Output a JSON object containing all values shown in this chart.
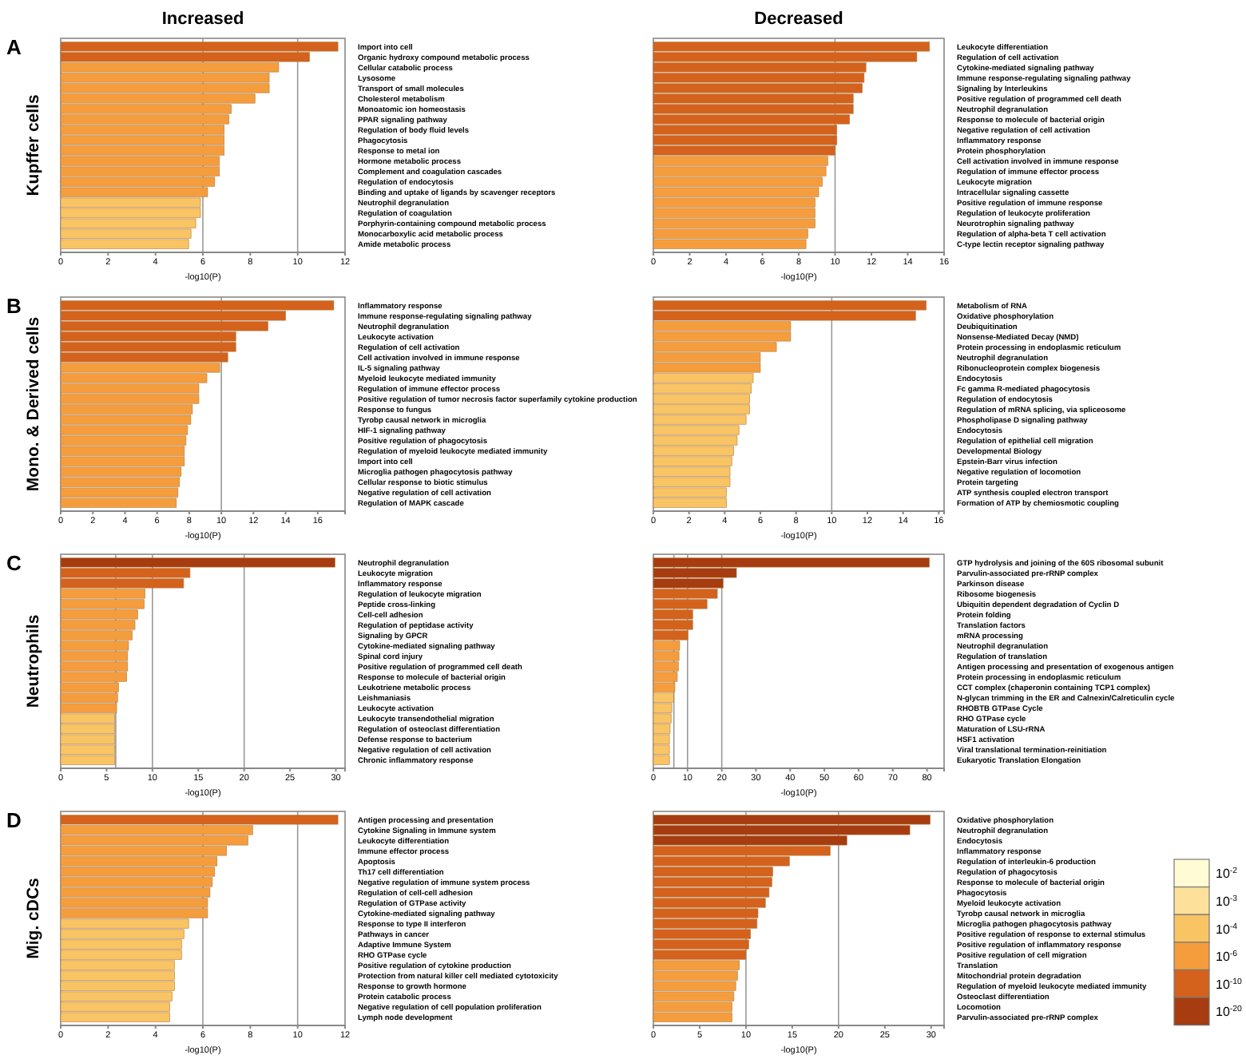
{
  "chart_data": [
    {
      "type": "bar",
      "orientation": "horizontal",
      "title": "Increased",
      "ylabel": "Kupffer cells",
      "annotations": [
        "A"
      ],
      "xlabel": "-log10(P)",
      "xlim": [
        0,
        12
      ],
      "xticks": [
        0,
        2,
        4,
        6,
        8,
        10,
        12
      ],
      "ref_lines": [
        {
          "axis": "x",
          "value": 6
        },
        {
          "axis": "x",
          "value": 10
        }
      ],
      "categories": [
        "Import into cell",
        "Organic hydroxy compound metabolic process",
        "Cellular catabolic process",
        "Lysosome",
        "Transport of small molecules",
        "Cholesterol metabolism",
        "Monoatomic ion homeostasis",
        "PPAR signaling pathway",
        "Regulation of body fluid levels",
        "Phagocytosis",
        "Response to metal ion",
        "Hormone metabolic process",
        "Complement and coagulation cascades",
        "Regulation of endocytosis",
        "Binding and uptake of ligands by scavenger receptors",
        "Neutrophil degranulation",
        "Regulation of coagulation",
        "Porphyrin-containing compound metabolic process",
        "Monocarboxylic acid metabolic process",
        "Amide metabolic process"
      ],
      "values": [
        11.7,
        10.5,
        9.2,
        8.8,
        8.8,
        8.2,
        7.2,
        7.1,
        6.9,
        6.9,
        6.9,
        6.7,
        6.7,
        6.5,
        6.2,
        5.9,
        5.9,
        5.7,
        5.5,
        5.4
      ],
      "colors": [
        "#d4621c",
        "#d4621c",
        "#f59d3d",
        "#f59d3d",
        "#f59d3d",
        "#f59d3d",
        "#f59d3d",
        "#f59d3d",
        "#f59d3d",
        "#f59d3d",
        "#f59d3d",
        "#f59d3d",
        "#f59d3d",
        "#f59d3d",
        "#f59d3d",
        "#f9c463",
        "#f9c463",
        "#f9c463",
        "#f9c463",
        "#f9c463"
      ]
    },
    {
      "type": "bar",
      "orientation": "horizontal",
      "title": "Decreased",
      "xlabel": "-log10(P)",
      "xlim": [
        0,
        16
      ],
      "xticks": [
        0,
        2,
        4,
        6,
        8,
        10,
        12,
        14,
        16
      ],
      "ref_lines": [
        {
          "axis": "x",
          "value": 10
        }
      ],
      "categories": [
        "Leukocyte differentiation",
        "Regulation of cell activation",
        "Cytokine-mediated signaling pathway",
        "Immune response-regulating signaling pathway",
        "Signaling by Interleukins",
        "Positive regulation of programmed cell death",
        "Neutrophil degranulation",
        "Response to molecule of bacterial origin",
        "Negative regulation of cell activation",
        "Inflammatory response",
        "Protein phosphorylation",
        "Cell activation involved in immune response",
        "Regulation of immune effector process",
        "Leukocyte migration",
        "Intracellular signaling cassette",
        "Positive regulation of immune response",
        "Regulation of leukocyte proliferation",
        "Neurotrophin signaling pathway",
        "Regulation of alpha-beta T cell activation",
        "C-type lectin receptor signaling pathway"
      ],
      "values": [
        15.2,
        14.5,
        11.7,
        11.6,
        11.5,
        11.0,
        11.0,
        10.8,
        10.1,
        10.1,
        10.0,
        9.6,
        9.5,
        9.3,
        9.1,
        8.9,
        8.9,
        8.9,
        8.5,
        8.4
      ],
      "colors": [
        "#d4621c",
        "#d4621c",
        "#d4621c",
        "#d4621c",
        "#d4621c",
        "#d4621c",
        "#d4621c",
        "#d4621c",
        "#d4621c",
        "#d4621c",
        "#d4621c",
        "#f59d3d",
        "#f59d3d",
        "#f59d3d",
        "#f59d3d",
        "#f59d3d",
        "#f59d3d",
        "#f59d3d",
        "#f59d3d",
        "#f59d3d"
      ]
    },
    {
      "type": "bar",
      "orientation": "horizontal",
      "ylabel": "Mono. & Derived cells",
      "annotations": [
        "B"
      ],
      "xlabel": "-log10(P)",
      "xlim": [
        0,
        17.7
      ],
      "xticks": [
        0,
        2,
        4,
        6,
        8,
        10,
        12,
        14,
        16
      ],
      "ref_lines": [
        {
          "axis": "x",
          "value": 10
        }
      ],
      "categories": [
        "Inflammatory response",
        "Immune response-regulating signaling pathway",
        "Neutrophil degranulation",
        "Leukocyte activation",
        "Regulation of cell activation",
        "Cell activation involved in immune response",
        "IL-5 signaling pathway",
        "Myeloid leukocyte mediated immunity",
        "Regulation of immune effector process",
        "Positive regulation of tumor necrosis factor superfamily cytokine production",
        "Response to fungus",
        "Tyrobp causal network in microglia",
        "HIF-1 signaling pathway",
        "Positive regulation of phagocytosis",
        "Regulation of myeloid leukocyte mediated immunity",
        "Import into cell",
        "Microglia pathogen phagocytosis pathway",
        "Cellular response to biotic stimulus",
        "Negative regulation of cell activation",
        "Regulation of MAPK cascade"
      ],
      "values": [
        17.0,
        14.0,
        12.9,
        10.9,
        10.9,
        10.4,
        9.9,
        9.1,
        8.6,
        8.6,
        8.2,
        8.1,
        7.9,
        7.8,
        7.7,
        7.7,
        7.5,
        7.4,
        7.3,
        7.2
      ],
      "colors": [
        "#d4621c",
        "#d4621c",
        "#d4621c",
        "#d4621c",
        "#d4621c",
        "#d4621c",
        "#f59d3d",
        "#f59d3d",
        "#f59d3d",
        "#f59d3d",
        "#f59d3d",
        "#f59d3d",
        "#f59d3d",
        "#f59d3d",
        "#f59d3d",
        "#f59d3d",
        "#f59d3d",
        "#f59d3d",
        "#f59d3d",
        "#f59d3d"
      ]
    },
    {
      "type": "bar",
      "orientation": "horizontal",
      "xlabel": "-log10(P)",
      "xlim": [
        0,
        16.3
      ],
      "xticks": [
        0,
        2,
        4,
        6,
        8,
        10,
        12,
        14,
        16
      ],
      "ref_lines": [
        {
          "axis": "x",
          "value": 10
        }
      ],
      "categories": [
        "Metabolism of RNA",
        "Oxidative phosphorylation",
        "Deubiquitination",
        "Nonsense-Mediated Decay (NMD)",
        "Protein processing in endoplasmic reticulum",
        "Neutrophil degranulation",
        "Ribonucleoprotein complex biogenesis",
        "Endocytosis",
        "Fc gamma R-mediated phagocytosis",
        "Regulation of endocytosis",
        "Regulation of mRNA splicing, via spliceosome",
        "Phospholipase D signaling pathway",
        "Endocytosis",
        "Regulation of epithelial cell migration",
        "Developmental Biology",
        "Epstein-Barr virus infection",
        "Negative regulation of locomotion",
        "Protein targeting",
        "ATP synthesis coupled electron transport",
        "Formation of ATP by chemiosmotic coupling"
      ],
      "values": [
        15.3,
        14.7,
        7.7,
        7.7,
        6.9,
        6.0,
        6.0,
        5.6,
        5.5,
        5.4,
        5.4,
        5.2,
        4.8,
        4.7,
        4.5,
        4.4,
        4.3,
        4.3,
        4.1,
        4.1
      ],
      "colors": [
        "#d4621c",
        "#d4621c",
        "#f59d3d",
        "#f59d3d",
        "#f59d3d",
        "#f59d3d",
        "#f59d3d",
        "#f9c463",
        "#f9c463",
        "#f9c463",
        "#f9c463",
        "#f9c463",
        "#f9c463",
        "#f9c463",
        "#f9c463",
        "#f9c463",
        "#f9c463",
        "#f9c463",
        "#f9c463",
        "#f9c463"
      ]
    },
    {
      "type": "bar",
      "orientation": "horizontal",
      "ylabel": "Neutrophils",
      "annotations": [
        "C"
      ],
      "xlabel": "-log10(P)",
      "xlim": [
        0,
        31
      ],
      "xticks": [
        0,
        5,
        10,
        15,
        20,
        25,
        30
      ],
      "ref_lines": [
        {
          "axis": "x",
          "value": 6
        },
        {
          "axis": "x",
          "value": 10
        },
        {
          "axis": "x",
          "value": 20
        }
      ],
      "categories": [
        "Neutrophil degranulation",
        "Leukocyte migration",
        "Inflammatory response",
        "Regulation of leukocyte migration",
        "Peptide cross-linking",
        "Cell-cell adhesion",
        "Regulation of peptidase activity",
        "Signaling by GPCR",
        "Cytokine-mediated signaling pathway",
        "Spinal cord injury",
        "Positive regulation of programmed cell death",
        "Response to molecule of bacterial origin",
        "Leukotriene metabolic process",
        "Leishmaniasis",
        "Leukocyte activation",
        "Leukocyte transendothelial migration",
        "Regulation of osteoclast differentiation",
        "Defense response to bacterium",
        "Negative regulation of cell activation",
        "Chronic inflammatory response"
      ],
      "values": [
        29.9,
        14.1,
        13.4,
        9.2,
        9.1,
        8.4,
        8.1,
        7.8,
        7.4,
        7.3,
        7.3,
        7.2,
        6.3,
        6.2,
        6.1,
        5.9,
        5.9,
        5.9,
        5.9,
        5.9
      ],
      "colors": [
        "#a63c10",
        "#d4621c",
        "#d4621c",
        "#f59d3d",
        "#f59d3d",
        "#f59d3d",
        "#f59d3d",
        "#f59d3d",
        "#f59d3d",
        "#f59d3d",
        "#f59d3d",
        "#f59d3d",
        "#f59d3d",
        "#f59d3d",
        "#f59d3d",
        "#f9c463",
        "#f9c463",
        "#f9c463",
        "#f9c463",
        "#f9c463"
      ]
    },
    {
      "type": "bar",
      "orientation": "horizontal",
      "xlabel": "-log10(P)",
      "xlim": [
        0,
        85
      ],
      "xticks": [
        0,
        10,
        20,
        30,
        40,
        50,
        60,
        70,
        80
      ],
      "ref_lines": [
        {
          "axis": "x",
          "value": 6
        },
        {
          "axis": "x",
          "value": 10
        },
        {
          "axis": "x",
          "value": 20
        }
      ],
      "categories": [
        "GTP hydrolysis and joining of the 60S ribosomal subunit",
        "Parvulin-associated pre-rRNP complex",
        "Parkinson disease",
        "Ribosome biogenesis",
        "Ubiquitin dependent degradation of Cyclin D",
        "Protein folding",
        "Translation factors",
        "mRNA processing",
        "Neutrophil degranulation",
        "Regulation of translation",
        "Antigen processing and presentation of exogenous antigen",
        "Protein processing in endoplasmic reticulum",
        "CCT complex (chaperonin containing TCP1 complex)",
        "N-glycan trimming in the ER and Calnexin/Calreticulin cycle",
        "RHOBTB GTPase Cycle",
        "RHO GTPase cycle",
        "Maturation of LSU-rRNA",
        "HSF1 activation",
        "Viral translational termination-reinitiation",
        "Eukaryotic Translation Elongation"
      ],
      "values": [
        80.7,
        24.3,
        20.4,
        18.7,
        15.7,
        11.5,
        11.5,
        10.1,
        7.7,
        7.5,
        7.3,
        7.0,
        6.3,
        5.9,
        5.4,
        5.2,
        4.9,
        4.7,
        4.7,
        4.7
      ],
      "colors": [
        "#a63c10",
        "#a63c10",
        "#a63c10",
        "#d4621c",
        "#d4621c",
        "#d4621c",
        "#d4621c",
        "#d4621c",
        "#f59d3d",
        "#f59d3d",
        "#f59d3d",
        "#f59d3d",
        "#f59d3d",
        "#f9c463",
        "#f9c463",
        "#f9c463",
        "#f9c463",
        "#f9c463",
        "#f9c463",
        "#f9c463"
      ]
    },
    {
      "type": "bar",
      "orientation": "horizontal",
      "ylabel": "Mig. cDCs",
      "annotations": [
        "D"
      ],
      "xlabel": "-log10(P)",
      "xlim": [
        0,
        12
      ],
      "xticks": [
        0,
        2,
        4,
        6,
        8,
        10,
        12
      ],
      "ref_lines": [
        {
          "axis": "x",
          "value": 6
        },
        {
          "axis": "x",
          "value": 10
        }
      ],
      "categories": [
        "Antigen processing and presentation",
        "Cytokine Signaling in Immune system",
        "Leukocyte differentiation",
        "Immune effector process",
        "Apoptosis",
        "Th17 cell differentiation",
        "Negative regulation of immune system process",
        "Regulation of cell-cell adhesion",
        "Regulation of GTPase activity",
        "Cytokine-mediated signaling pathway",
        "Response to type II interferon",
        "Pathways in cancer",
        "Adaptive Immune System",
        "RHO GTPase cycle",
        "Positive regulation of cytokine production",
        "Protection from natural killer cell mediated cytotoxicity",
        "Response to growth hormone",
        "Protein catabolic process",
        "Negative regulation of cell population proliferation",
        "Lymph node development"
      ],
      "values": [
        11.7,
        8.1,
        7.9,
        7.0,
        6.6,
        6.5,
        6.4,
        6.3,
        6.2,
        6.2,
        5.4,
        5.2,
        5.1,
        5.1,
        4.8,
        4.8,
        4.8,
        4.7,
        4.6,
        4.6
      ],
      "colors": [
        "#d4621c",
        "#f59d3d",
        "#f59d3d",
        "#f59d3d",
        "#f59d3d",
        "#f59d3d",
        "#f59d3d",
        "#f59d3d",
        "#f59d3d",
        "#f59d3d",
        "#f9c463",
        "#f9c463",
        "#f9c463",
        "#f9c463",
        "#f9c463",
        "#f9c463",
        "#f9c463",
        "#f9c463",
        "#f9c463",
        "#f9c463"
      ]
    },
    {
      "type": "bar",
      "orientation": "horizontal",
      "xlabel": "-log10(P)",
      "xlim": [
        0,
        31.4
      ],
      "xticks": [
        0,
        5,
        10,
        15,
        20,
        25,
        30
      ],
      "ref_lines": [
        {
          "axis": "x",
          "value": 10
        },
        {
          "axis": "x",
          "value": 20
        }
      ],
      "categories": [
        "Oxidative phosphorylation",
        "Neutrophil degranulation",
        "Endocytosis",
        "Inflammatory response",
        "Regulation of interleukin-6 production",
        "Regulation of phagocytosis",
        "Response to molecule of bacterial origin",
        "Phagocytosis",
        "Myeloid leukocyte activation",
        "Tyrobp causal network in microglia",
        "Microglia pathogen phagocytosis pathway",
        "Positive regulation of response to external stimulus",
        "Positive regulation of inflammatory response",
        "Positive regulation of cell migration",
        "Translation",
        "Mitochondrial protein degradation",
        "Regulation of myeloid leukocyte mediated immunity",
        "Osteoclast differentiation",
        "Locomotion",
        "Parvulin-associated pre-rRNP complex"
      ],
      "values": [
        29.9,
        27.7,
        20.9,
        19.1,
        14.7,
        12.9,
        12.8,
        12.5,
        12.1,
        11.3,
        11.2,
        10.5,
        10.3,
        10.0,
        9.3,
        9.1,
        8.9,
        8.7,
        8.5,
        8.5
      ],
      "colors": [
        "#a63c10",
        "#a63c10",
        "#a63c10",
        "#d4621c",
        "#d4621c",
        "#d4621c",
        "#d4621c",
        "#d4621c",
        "#d4621c",
        "#d4621c",
        "#d4621c",
        "#d4621c",
        "#d4621c",
        "#d4621c",
        "#f59d3d",
        "#f59d3d",
        "#f59d3d",
        "#f59d3d",
        "#f59d3d",
        "#f59d3d"
      ]
    },
    {
      "type": "other",
      "categories": [
        "10$^{-2}$",
        "10$^{-3}$",
        "10$^{-4}$",
        "10$^{-6}$",
        "10$^{-10}$",
        "10$^{-20}$"
      ],
      "colors": [
        "#fffbd5",
        "#fde09a",
        "#f9c463",
        "#f59d3d",
        "#d4621c",
        "#a63c10"
      ]
    }
  ]
}
